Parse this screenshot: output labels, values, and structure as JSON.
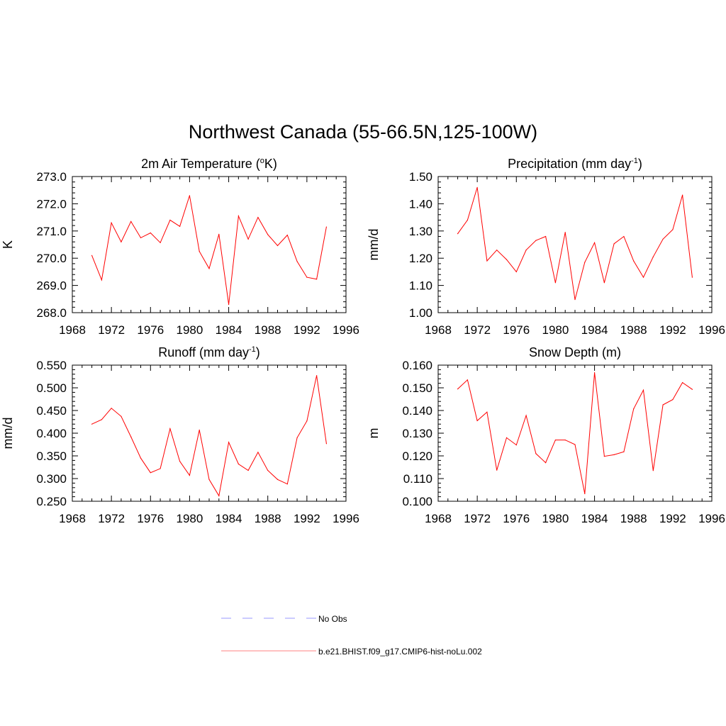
{
  "figure": {
    "title": "Northwest Canada (55-66.5N,125-100W)"
  },
  "legend": {
    "items": [
      {
        "label": "No Obs",
        "color": "#9999ff",
        "dash": true
      },
      {
        "label": "b.e21.BHIST.f09_g17.CMIP6-hist-noLu.002",
        "color": "#ff8080",
        "dash": false
      }
    ]
  },
  "chart_data": [
    {
      "type": "line",
      "id": "temperature",
      "title": "2m Air Temperature (",
      "title_sup": "o",
      "title_after": "K)",
      "title_sup_mode": "sup",
      "ylabel": "K",
      "xlabel": "",
      "xlim": [
        1968,
        1996
      ],
      "ylim": [
        268.0,
        273.0
      ],
      "xticks": [
        1968,
        1972,
        1976,
        1980,
        1984,
        1988,
        1992,
        1996
      ],
      "yticks": [
        "268.0",
        "269.0",
        "270.0",
        "271.0",
        "272.0",
        "273.0"
      ],
      "color": "#ff0000",
      "x": [
        1970,
        1971,
        1972,
        1973,
        1974,
        1975,
        1976,
        1977,
        1978,
        1979,
        1980,
        1981,
        1982,
        1983,
        1984,
        1985,
        1986,
        1987,
        1988,
        1989,
        1990,
        1991,
        1992,
        1993,
        1994
      ],
      "y": [
        270.1,
        269.2,
        271.3,
        270.6,
        271.35,
        270.75,
        270.93,
        270.57,
        271.4,
        271.17,
        272.3,
        270.25,
        269.62,
        270.88,
        268.3,
        271.55,
        270.7,
        271.5,
        270.87,
        270.46,
        270.85,
        269.88,
        269.3,
        269.23,
        271.15
      ]
    },
    {
      "type": "line",
      "id": "precipitation",
      "title": "Precipitation (mm day",
      "title_sup": "-1",
      "title_after": ")",
      "title_sup_mode": "sup",
      "ylabel": "mm/d",
      "xlabel": "",
      "xlim": [
        1968,
        1996
      ],
      "ylim": [
        1.0,
        1.5
      ],
      "xticks": [
        1968,
        1972,
        1976,
        1980,
        1984,
        1988,
        1992,
        1996
      ],
      "yticks": [
        "1.00",
        "1.10",
        "1.20",
        "1.30",
        "1.40",
        "1.50"
      ],
      "color": "#ff0000",
      "x": [
        1970,
        1971,
        1972,
        1973,
        1974,
        1975,
        1976,
        1977,
        1978,
        1979,
        1980,
        1981,
        1982,
        1983,
        1984,
        1985,
        1986,
        1987,
        1988,
        1989,
        1990,
        1991,
        1992,
        1993,
        1994
      ],
      "y": [
        1.29,
        1.34,
        1.46,
        1.19,
        1.23,
        1.195,
        1.15,
        1.23,
        1.265,
        1.28,
        1.11,
        1.295,
        1.048,
        1.185,
        1.257,
        1.11,
        1.253,
        1.28,
        1.19,
        1.13,
        1.205,
        1.27,
        1.305,
        1.432,
        1.13
      ]
    },
    {
      "type": "line",
      "id": "runoff",
      "title": "Runoff (mm day",
      "title_sup": "-1",
      "title_after": ")",
      "title_sup_mode": "sup",
      "ylabel": "mm/d",
      "xlabel": "",
      "xlim": [
        1968,
        1996
      ],
      "ylim": [
        0.25,
        0.55
      ],
      "xticks": [
        1968,
        1972,
        1976,
        1980,
        1984,
        1988,
        1992,
        1996
      ],
      "yticks": [
        "0.250",
        "0.300",
        "0.350",
        "0.400",
        "0.450",
        "0.500",
        "0.550"
      ],
      "color": "#ff0000",
      "x": [
        1970,
        1971,
        1972,
        1973,
        1974,
        1975,
        1976,
        1977,
        1978,
        1979,
        1980,
        1981,
        1982,
        1983,
        1984,
        1985,
        1986,
        1987,
        1988,
        1989,
        1990,
        1991,
        1992,
        1993,
        1994
      ],
      "y": [
        0.42,
        0.43,
        0.455,
        0.437,
        0.392,
        0.345,
        0.313,
        0.322,
        0.41,
        0.338,
        0.307,
        0.407,
        0.298,
        0.262,
        0.38,
        0.332,
        0.318,
        0.358,
        0.318,
        0.298,
        0.288,
        0.39,
        0.427,
        0.527,
        0.377
      ]
    },
    {
      "type": "line",
      "id": "snow-depth",
      "title": "Snow Depth (m)",
      "title_sup": "",
      "title_after": "",
      "title_sup_mode": "none",
      "ylabel": "m",
      "xlabel": "",
      "xlim": [
        1968,
        1996
      ],
      "ylim": [
        0.1,
        0.16
      ],
      "xticks": [
        1968,
        1972,
        1976,
        1980,
        1984,
        1988,
        1992,
        1996
      ],
      "yticks": [
        "0.100",
        "0.110",
        "0.120",
        "0.130",
        "0.140",
        "0.150",
        "0.160"
      ],
      "color": "#ff0000",
      "x": [
        1970,
        1971,
        1972,
        1973,
        1974,
        1975,
        1976,
        1977,
        1978,
        1979,
        1980,
        1981,
        1982,
        1983,
        1984,
        1985,
        1986,
        1987,
        1988,
        1989,
        1990,
        1991,
        1992,
        1993,
        1994
      ],
      "y": [
        0.1495,
        0.1535,
        0.1355,
        0.1393,
        0.1137,
        0.128,
        0.1248,
        0.1378,
        0.121,
        0.117,
        0.127,
        0.127,
        0.125,
        0.1033,
        0.1567,
        0.1198,
        0.1205,
        0.1218,
        0.1407,
        0.149,
        0.1135,
        0.1425,
        0.1448,
        0.1523,
        0.1493
      ]
    }
  ]
}
